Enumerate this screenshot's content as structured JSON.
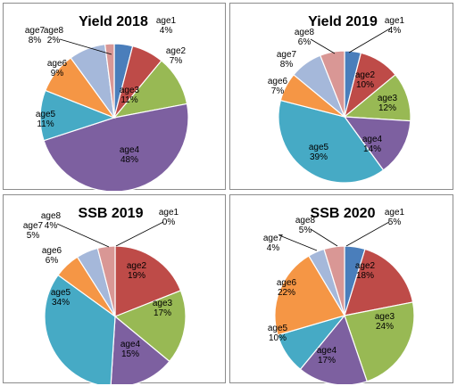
{
  "colors": {
    "age1": "#4a7ebb",
    "age2": "#be4b48",
    "age3": "#98b954",
    "age4": "#7d60a0",
    "age5": "#46aac5",
    "age6": "#f59645",
    "age7": "#a5b8da",
    "age8": "#d99795",
    "border": "#8c8c8c",
    "slice_edge": "#ffffff"
  },
  "chart_data": [
    {
      "type": "pie",
      "title": "Yield 2018",
      "categories": [
        "age1",
        "age2",
        "age3",
        "age4",
        "age5",
        "age6",
        "age7",
        "age8"
      ],
      "values": [
        4,
        7,
        11,
        48,
        11,
        9,
        8,
        2
      ],
      "labels": [
        "4%",
        "7%",
        "11%",
        "48%",
        "11%",
        "9%",
        "8%",
        "2%"
      ]
    },
    {
      "type": "pie",
      "title": "Yield 2019",
      "categories": [
        "age1",
        "age2",
        "age3",
        "age4",
        "age5",
        "age6",
        "age7",
        "age8"
      ],
      "values": [
        4,
        10,
        12,
        14,
        39,
        7,
        8,
        6
      ],
      "labels": [
        "4%",
        "10%",
        "12%",
        "14%",
        "39%",
        "7%",
        "8%",
        "6%"
      ]
    },
    {
      "type": "pie",
      "title": "SSB 2019",
      "categories": [
        "age1",
        "age2",
        "age3",
        "age4",
        "age5",
        "age6",
        "age7",
        "age8"
      ],
      "values": [
        0,
        19,
        17,
        15,
        34,
        6,
        5,
        4
      ],
      "labels": [
        "0%",
        "19%",
        "17%",
        "15%",
        "34%",
        "6%",
        "5%",
        "4%"
      ]
    },
    {
      "type": "pie",
      "title": "SSB 2020",
      "categories": [
        "age1",
        "age2",
        "age3",
        "age4",
        "age5",
        "age6",
        "age7",
        "age8"
      ],
      "values": [
        5,
        18,
        24,
        17,
        10,
        22,
        4,
        5
      ],
      "labels": [
        "5%",
        "18%",
        "24%",
        "17%",
        "10%",
        "22%",
        "4%",
        "5%"
      ]
    }
  ]
}
